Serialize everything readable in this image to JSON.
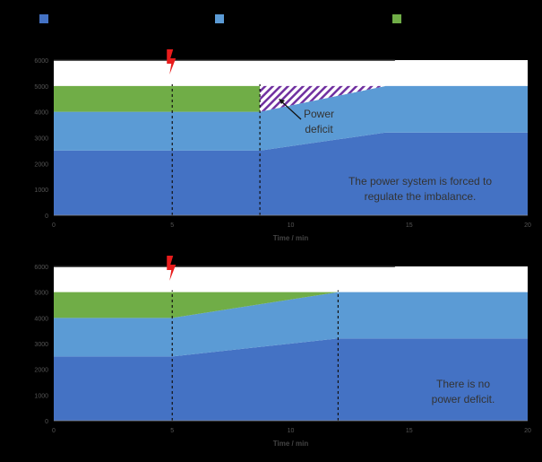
{
  "legend": {
    "entries": [
      {
        "color": "#4472C4"
      },
      {
        "color": "#5B9BD5"
      },
      {
        "color": "#70AD47"
      }
    ]
  },
  "colors": {
    "base": "#4472C4",
    "middle": "#5B9BD5",
    "top": "#70AD47",
    "deficit_hatch": "#7030A0",
    "capacity_line": "#FFFFFF",
    "event_marker": "#E81C1C"
  },
  "chart_data": [
    {
      "type": "area",
      "xlabel": "Time / min",
      "ylabel": "",
      "xlim": [
        0,
        20
      ],
      "ylim": [
        0,
        6000
      ],
      "x_ticks": [
        "0",
        "5",
        "10",
        "15",
        "20"
      ],
      "y_ticks": [
        "0",
        "1000",
        "2000",
        "3000",
        "4000",
        "5000",
        "6000"
      ],
      "capacity_line": {
        "y": 6000,
        "x_end": 14.4
      },
      "event_marker_x": 5,
      "vlines": [
        5,
        8.7
      ],
      "series": [
        {
          "x": [
            0,
            8.7,
            14,
            20
          ],
          "values": [
            2500,
            2500,
            3200,
            3200
          ]
        },
        {
          "x": [
            0,
            8.7,
            14,
            20
          ],
          "values": [
            1500,
            1500,
            1800,
            1800
          ]
        },
        {
          "x": [
            0,
            8.7
          ],
          "values": [
            1000,
            1000
          ]
        }
      ],
      "deficit": {
        "x": [
          8.7,
          14
        ],
        "top": [
          5000,
          5000
        ],
        "bottom": [
          4000,
          5000
        ]
      },
      "annotations": [
        "Power",
        "deficit",
        "The power system is forced to",
        "regulate the imbalance."
      ]
    },
    {
      "type": "area",
      "xlabel": "Time / min",
      "ylabel": "",
      "xlim": [
        0,
        20
      ],
      "ylim": [
        0,
        6000
      ],
      "x_ticks": [
        "0",
        "5",
        "10",
        "15",
        "20"
      ],
      "y_ticks": [
        "0",
        "1000",
        "2000",
        "3000",
        "4000",
        "5000",
        "6000"
      ],
      "capacity_line": {
        "y": 6000,
        "x_end": 14.4
      },
      "event_marker_x": 5,
      "vlines": [
        5,
        12
      ],
      "series": [
        {
          "x": [
            0,
            5,
            12,
            20
          ],
          "values": [
            2500,
            2500,
            3200,
            3200
          ]
        },
        {
          "x": [
            0,
            5,
            12,
            20
          ],
          "values": [
            1500,
            1500,
            1800,
            1800
          ]
        },
        {
          "x": [
            0,
            5,
            12
          ],
          "values": [
            1000,
            1000,
            0
          ]
        }
      ],
      "annotations": [
        "There is no",
        "power deficit."
      ]
    }
  ]
}
